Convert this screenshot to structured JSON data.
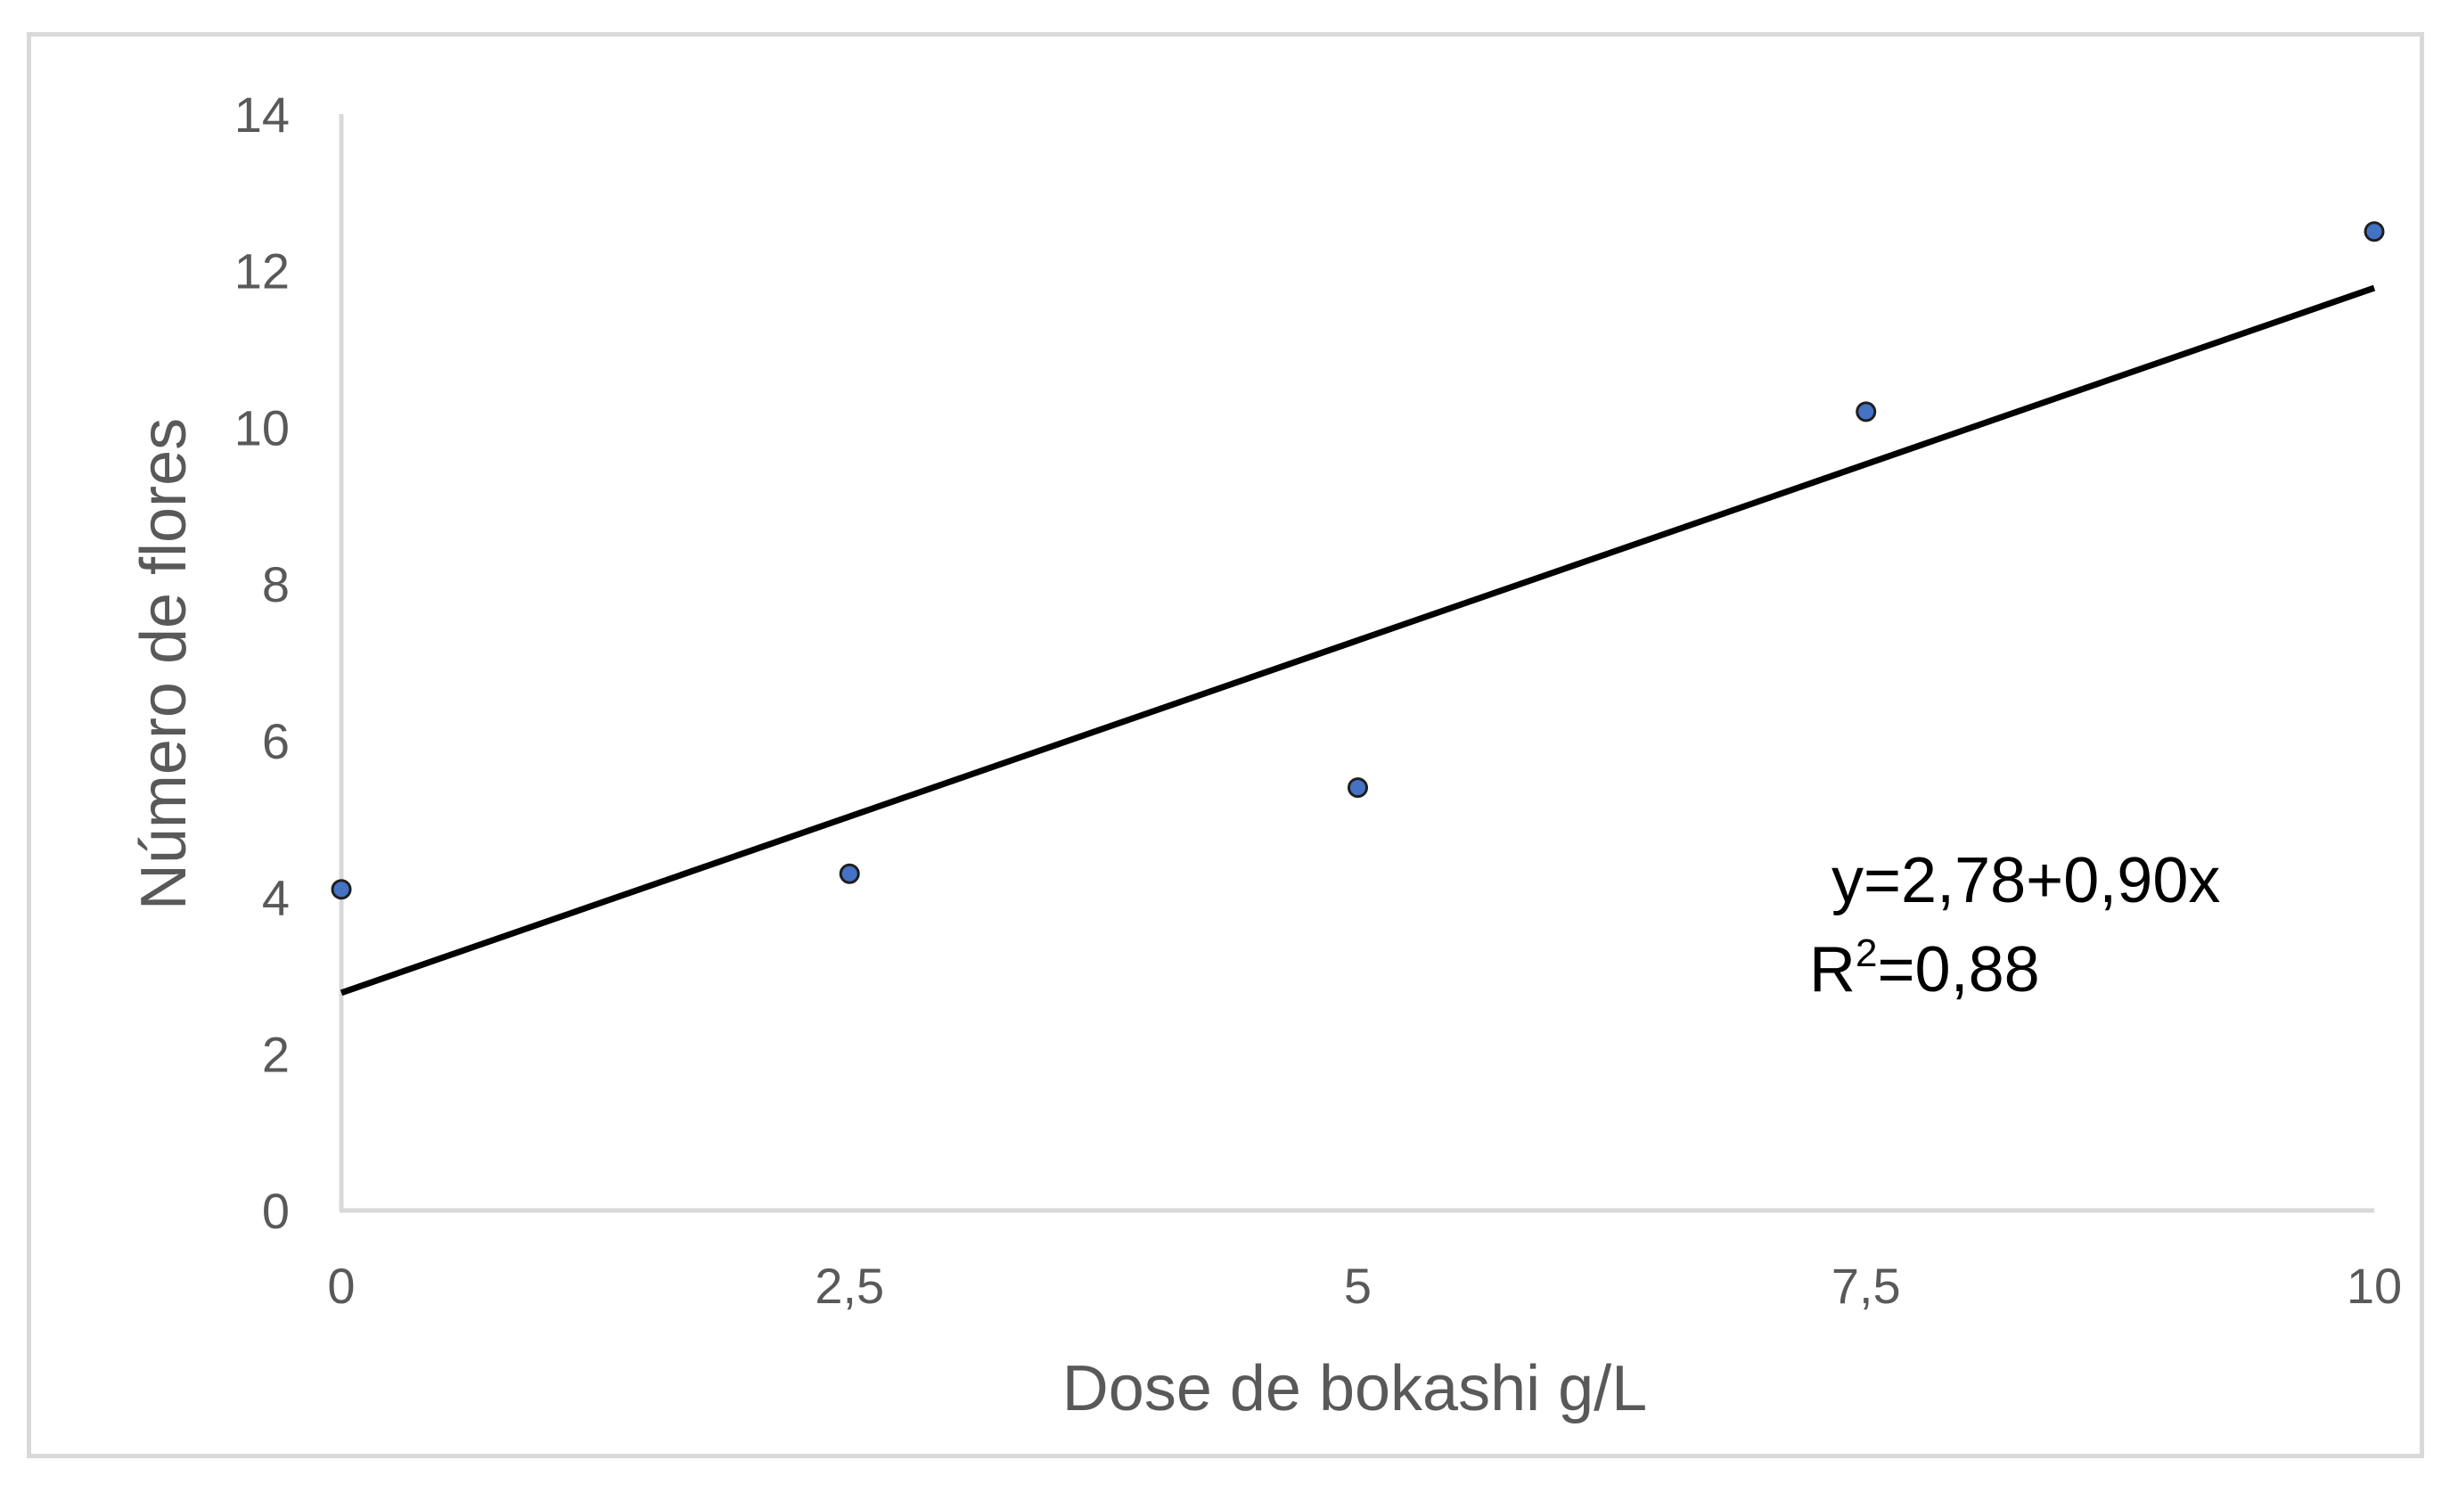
{
  "chart_data": {
    "type": "scatter",
    "title": "",
    "xlabel": "Dose de bokashi g/L",
    "ylabel": "Número de flores",
    "xlim": [
      0,
      10
    ],
    "ylim": [
      0,
      14
    ],
    "x_ticks": [
      0,
      2.5,
      5,
      7.5,
      10
    ],
    "x_tick_labels": [
      "0",
      "2,5",
      "5",
      "7,5",
      "10"
    ],
    "y_ticks": [
      0,
      2,
      4,
      6,
      8,
      10,
      12,
      14
    ],
    "y_tick_labels": [
      "0",
      "2",
      "4",
      "6",
      "8",
      "10",
      "12",
      "14"
    ],
    "grid": false,
    "series": [
      {
        "x": [
          0,
          2.5,
          5,
          7.5,
          10
        ],
        "y": [
          4.1,
          4.3,
          5.4,
          10.2,
          12.5
        ],
        "color": "#4472c4"
      }
    ],
    "trendline": {
      "intercept": 2.78,
      "slope": 0.9,
      "color": "#000000"
    },
    "annotations": {
      "equation": "y=2,78+0,90x",
      "r_squared_prefix": "R",
      "r_squared_sup": "2",
      "r_squared_value": "=0,88"
    },
    "colors": {
      "axis": "#d9d9d9",
      "tick_text": "#595959",
      "frame": "#d9d9d9"
    }
  }
}
